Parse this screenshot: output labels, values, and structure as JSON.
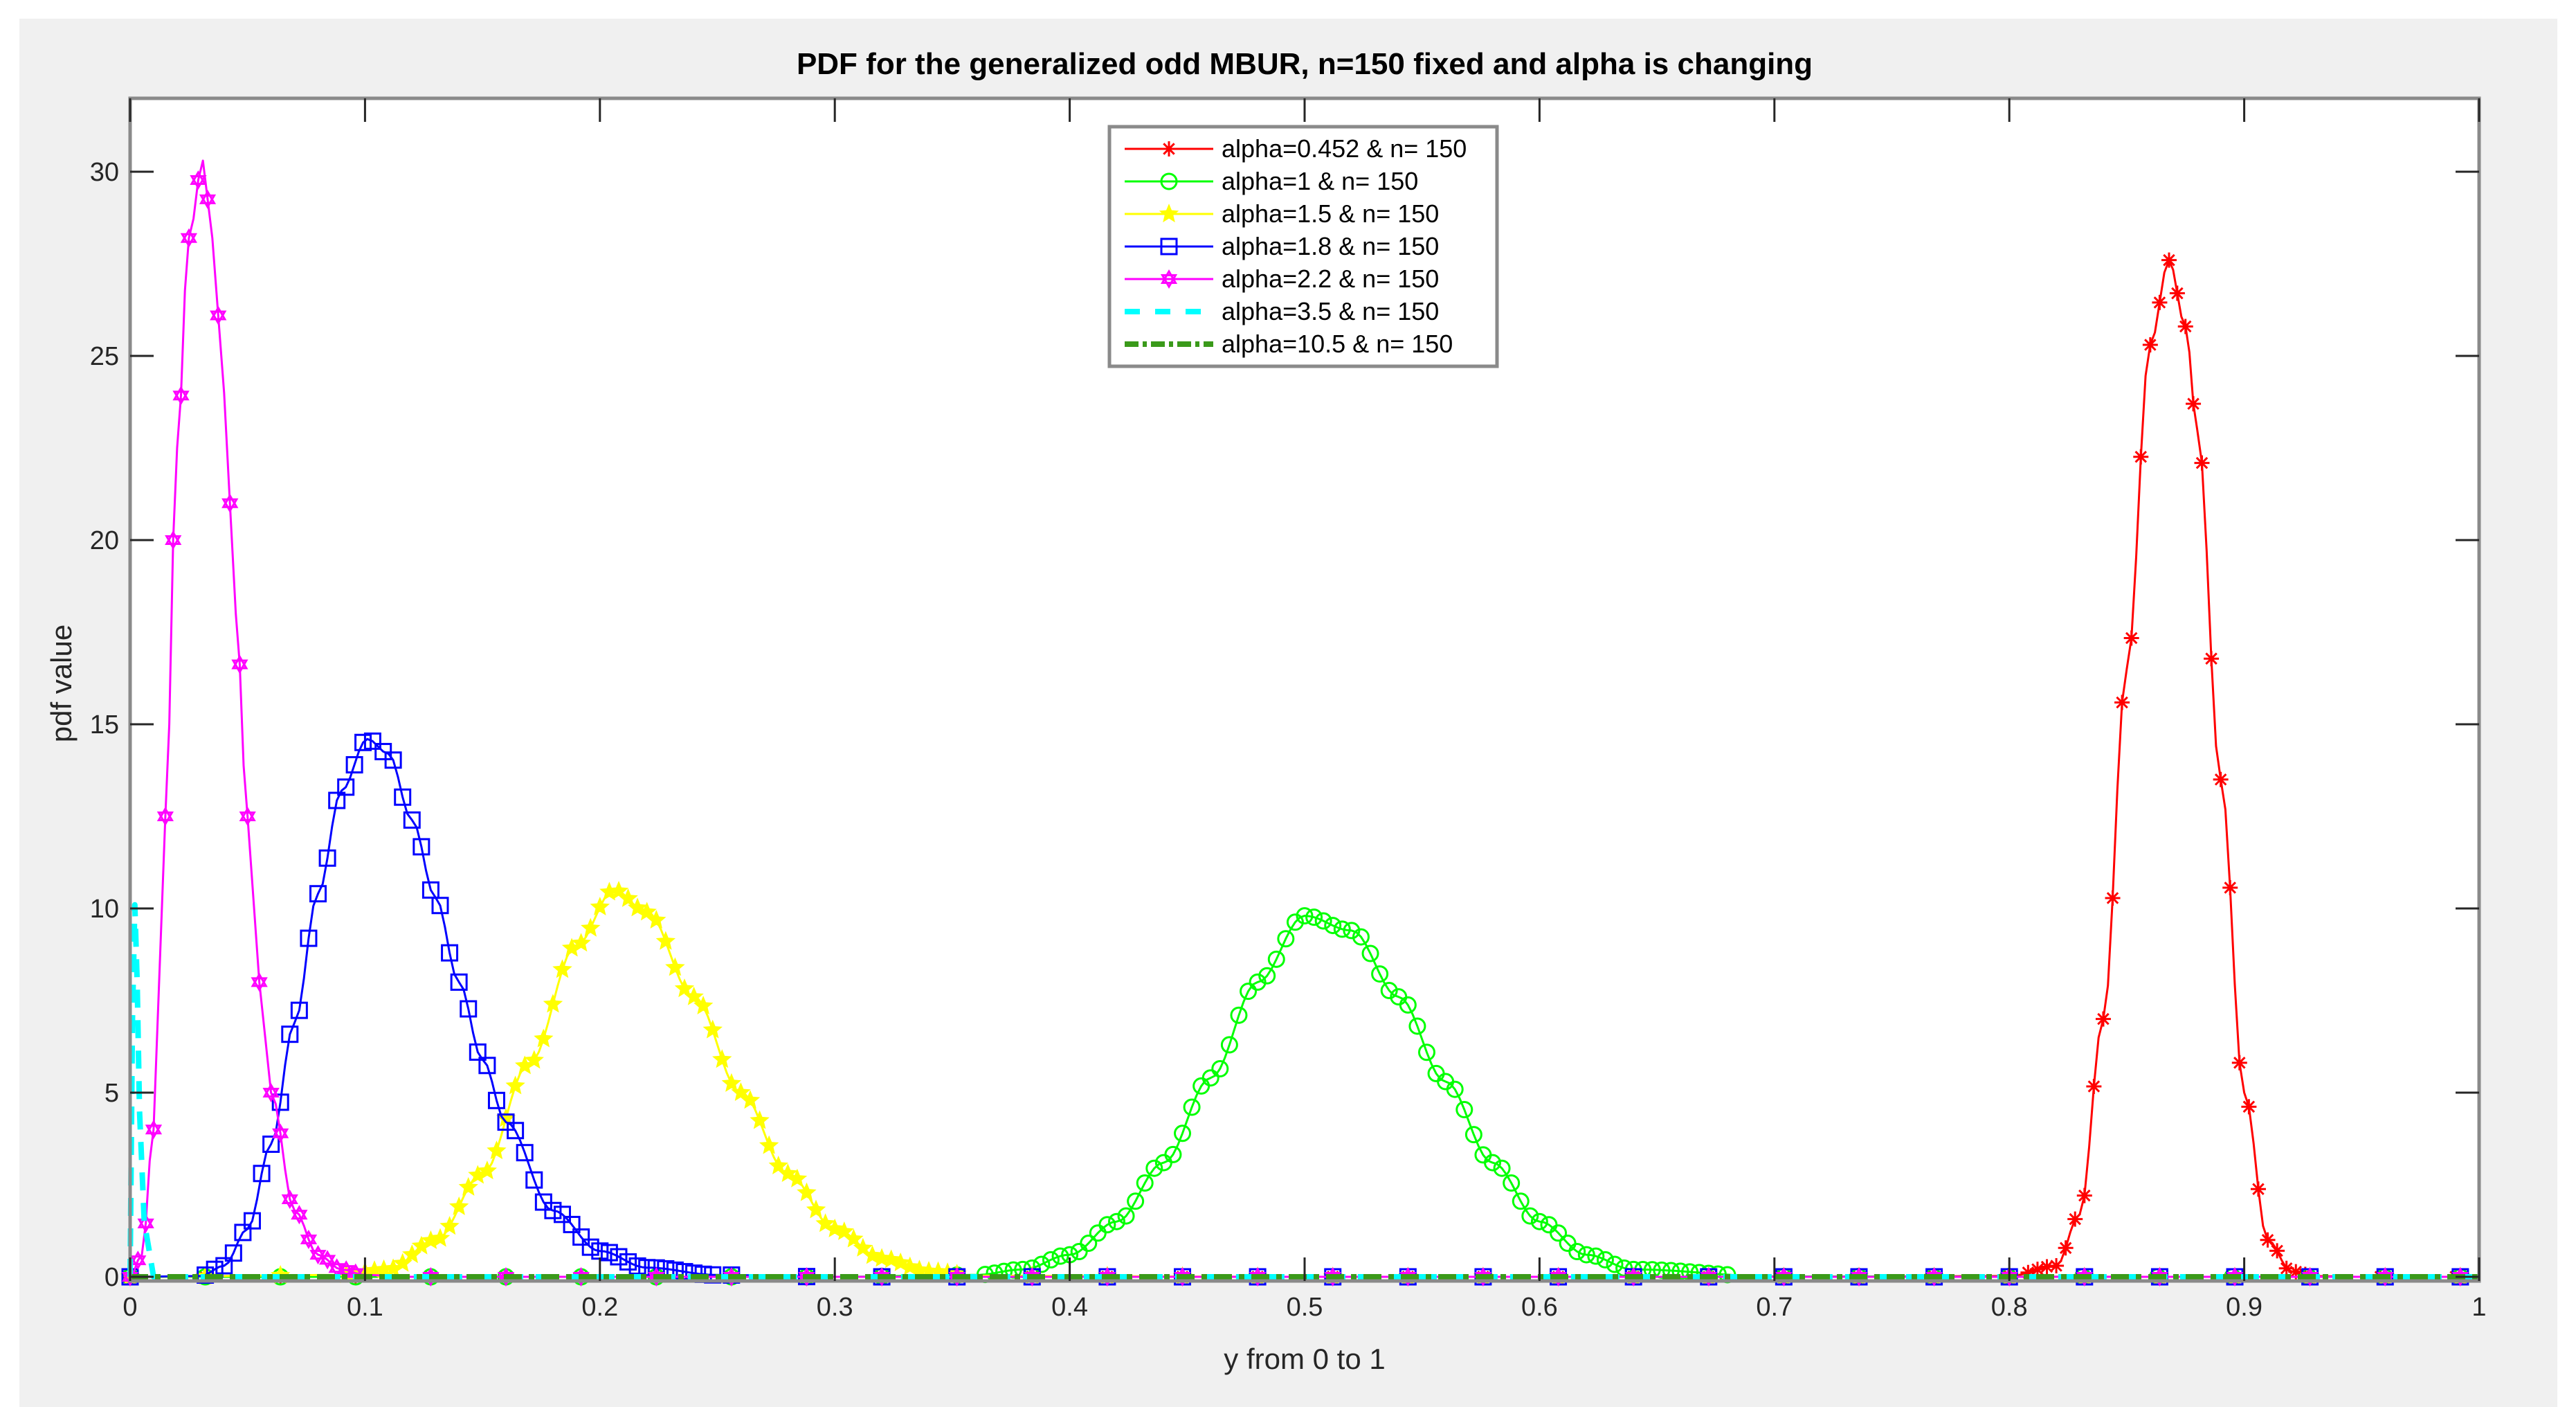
{
  "chart_data": {
    "type": "line",
    "title": "PDF for the generalized odd MBUR, n=150 fixed and alpha is changing",
    "xlabel": "y from 0 to 1",
    "ylabel": "pdf value",
    "xlim": [
      0,
      1
    ],
    "ylim": [
      0,
      32
    ],
    "grid": false,
    "legend_position": "top-center",
    "x_ticks": [
      "0",
      "0.1",
      "0.2",
      "0.3",
      "0.4",
      "0.5",
      "0.6",
      "0.7",
      "0.8",
      "0.9",
      "1"
    ],
    "y_ticks": [
      "0",
      "5",
      "10",
      "15",
      "20",
      "25",
      "30"
    ],
    "series": [
      {
        "name": "alpha=0.452 & n= 150",
        "color": "#ff0000",
        "marker": "asterisk",
        "line_style": "solid",
        "peak": {
          "x": 0.868,
          "y": 27.6
        },
        "x": [
          0.0,
          0.4,
          0.7,
          0.8,
          0.82,
          0.83,
          0.84,
          0.85,
          0.86,
          0.868,
          0.875,
          0.88,
          0.89,
          0.9,
          0.91,
          0.92,
          0.93,
          0.95,
          0.98,
          1.0
        ],
        "y": [
          0,
          0,
          0,
          0.02,
          0.3,
          1.7,
          7.0,
          16.5,
          25.3,
          27.6,
          25.8,
          23.0,
          13.5,
          5.0,
          1.0,
          0.15,
          0.02,
          0,
          0,
          0
        ]
      },
      {
        "name": "alpha=1 & n= 150",
        "color": "#00ff00",
        "marker": "circle",
        "line_style": "solid",
        "peak": {
          "x": 0.5,
          "y": 9.8
        },
        "x": [
          0.0,
          0.3,
          0.36,
          0.38,
          0.4,
          0.42,
          0.44,
          0.46,
          0.48,
          0.5,
          0.52,
          0.54,
          0.56,
          0.58,
          0.6,
          0.62,
          0.64,
          0.7,
          0.893,
          1.0
        ],
        "y": [
          0,
          0,
          0.05,
          0.2,
          0.6,
          1.5,
          3.1,
          5.4,
          8.0,
          9.8,
          9.4,
          7.6,
          5.3,
          3.1,
          1.5,
          0.6,
          0.2,
          0.01,
          0,
          0
        ]
      },
      {
        "name": "alpha=1.5 & n= 150",
        "color": "#ffff00",
        "marker": "star",
        "line_style": "solid",
        "peak": {
          "x": 0.206,
          "y": 10.5
        },
        "x": [
          0.0,
          0.09,
          0.11,
          0.13,
          0.15,
          0.17,
          0.19,
          0.206,
          0.22,
          0.24,
          0.26,
          0.28,
          0.3,
          0.32,
          0.34,
          0.36,
          0.5,
          1.0
        ],
        "y": [
          0,
          0.05,
          0.2,
          1.0,
          2.8,
          5.8,
          9.0,
          10.5,
          9.9,
          7.6,
          5.0,
          2.8,
          1.3,
          0.5,
          0.15,
          0.03,
          0,
          0
        ]
      },
      {
        "name": "alpha=1.8 & n= 150",
        "color": "#0000ff",
        "marker": "square",
        "line_style": "solid",
        "peak": {
          "x": 0.101,
          "y": 14.6
        },
        "x": [
          0.0,
          0.03,
          0.04,
          0.05,
          0.06,
          0.07,
          0.08,
          0.09,
          0.101,
          0.11,
          0.12,
          0.13,
          0.14,
          0.15,
          0.16,
          0.18,
          0.2,
          0.22,
          0.25,
          0.3,
          1.0
        ],
        "y": [
          0,
          0.02,
          0.3,
          1.3,
          3.6,
          6.9,
          10.4,
          13.2,
          14.6,
          14.2,
          12.4,
          10.3,
          8.0,
          5.9,
          4.2,
          1.8,
          0.7,
          0.25,
          0.05,
          0,
          0
        ]
      },
      {
        "name": "alpha=2.2 & n= 150",
        "color": "#ff00ff",
        "marker": "hexagram",
        "line_style": "solid",
        "peak": {
          "x": 0.031,
          "y": 30.3
        },
        "x": [
          0.0,
          0.005,
          0.01,
          0.015,
          0.02,
          0.025,
          0.031,
          0.035,
          0.04,
          0.045,
          0.05,
          0.055,
          0.06,
          0.07,
          0.08,
          0.09,
          0.1,
          0.12,
          0.2,
          1.0
        ],
        "y": [
          0,
          0.6,
          4.0,
          12.5,
          22.5,
          28.2,
          30.3,
          28.2,
          24.0,
          18.0,
          12.5,
          8.0,
          5.0,
          1.8,
          0.6,
          0.2,
          0.05,
          0,
          0,
          0
        ]
      },
      {
        "name": "alpha=3.5 & n= 150",
        "color": "#00ffff",
        "marker": "none",
        "line_style": "dashed",
        "peak": {
          "x": 0.002,
          "y": 10.1
        },
        "x": [
          0.0,
          0.001,
          0.002,
          0.003,
          0.004,
          0.006,
          0.01,
          1.0
        ],
        "y": [
          0,
          7.0,
          10.1,
          8.0,
          4.5,
          1.5,
          0,
          0
        ]
      },
      {
        "name": "alpha=10.5 & n= 150",
        "color": "#3a9a1a",
        "marker": "none",
        "line_style": "dash-dot",
        "peak": {
          "x": 0.0,
          "y": 0.0
        },
        "x": [
          0.0,
          1.0
        ],
        "y": [
          0,
          0
        ]
      }
    ]
  }
}
